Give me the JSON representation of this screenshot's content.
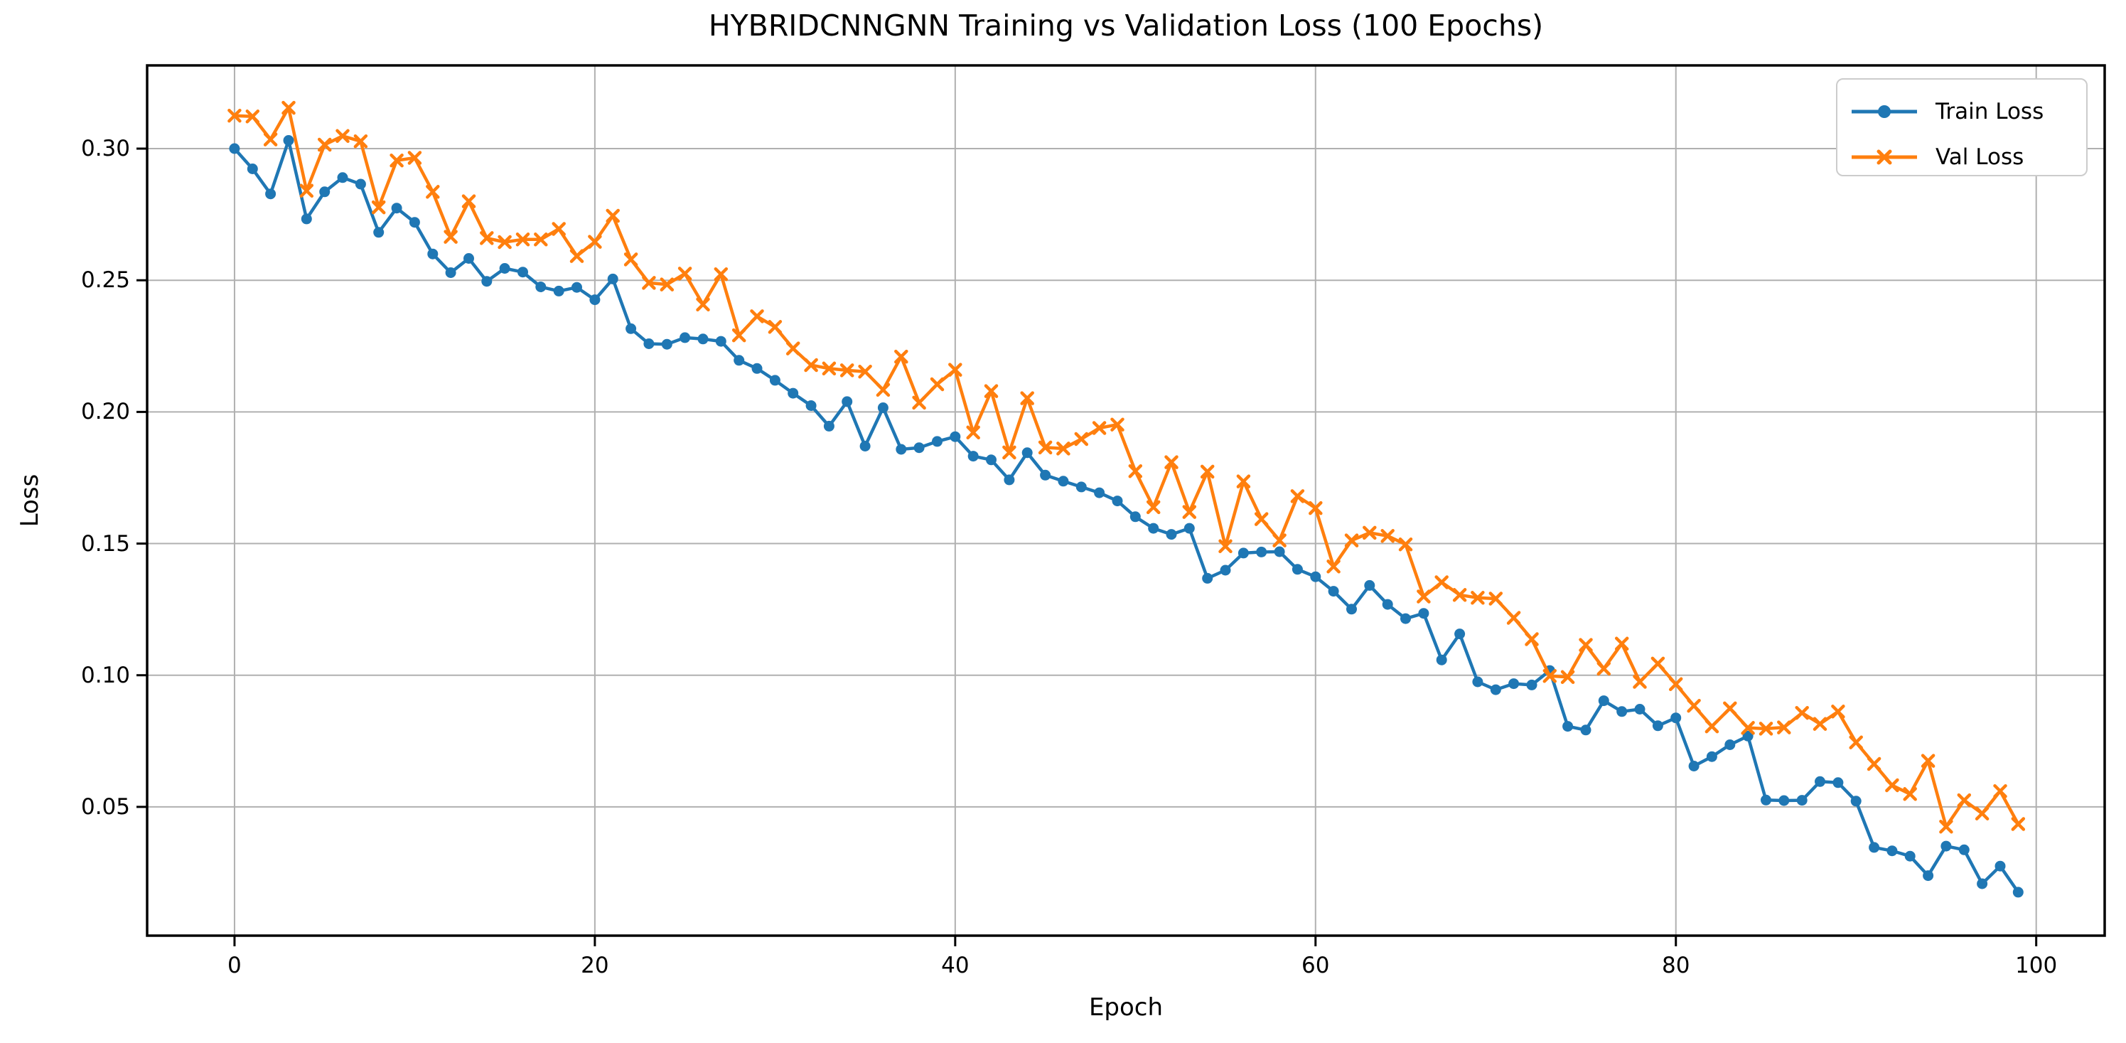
{
  "chart_data": {
    "type": "line",
    "title": "HYBRIDCNNGNN Training vs Validation Loss (100 Epochs)",
    "xlabel": "Epoch",
    "ylabel": "Loss",
    "x_ticks": [
      0,
      20,
      40,
      60,
      80,
      100
    ],
    "x_tick_labels": [
      "0",
      "20",
      "40",
      "60",
      "80",
      "100"
    ],
    "y_ticks": [
      0.05,
      0.1,
      0.15,
      0.2,
      0.25,
      0.3
    ],
    "y_tick_labels": [
      "0.05",
      "0.10",
      "0.15",
      "0.20",
      "0.25",
      "0.30"
    ],
    "xlim": [
      -4.85,
      103.8
    ],
    "ylim": [
      0.0011,
      0.3316
    ],
    "grid": true,
    "legend_position": "upper right",
    "background_color": "#ffffff",
    "grid_color": "#b0b0b0",
    "spine_color": "#000000",
    "x": "epochs 0..99 (index of each value)",
    "series": [
      {
        "name": "Train Loss",
        "color": "#1f77b4",
        "marker": "circle",
        "values": [
          0.3,
          0.2923,
          0.2828,
          0.3031,
          0.2733,
          0.2836,
          0.289,
          0.2865,
          0.2682,
          0.2774,
          0.272,
          0.26,
          0.2529,
          0.2583,
          0.2496,
          0.2545,
          0.2531,
          0.2475,
          0.2459,
          0.2473,
          0.2426,
          0.2505,
          0.2316,
          0.2259,
          0.2257,
          0.2282,
          0.2277,
          0.2268,
          0.2196,
          0.2165,
          0.212,
          0.2071,
          0.2024,
          0.1946,
          0.2039,
          0.187,
          0.2016,
          0.1858,
          0.1864,
          0.1888,
          0.1906,
          0.1832,
          0.1818,
          0.1742,
          0.1845,
          0.176,
          0.1737,
          0.1715,
          0.1693,
          0.1662,
          0.1602,
          0.1558,
          0.1535,
          0.1558,
          0.1368,
          0.1399,
          0.1464,
          0.1468,
          0.1469,
          0.1402,
          0.1374,
          0.1319,
          0.1251,
          0.1341,
          0.1269,
          0.1215,
          0.1235,
          0.1058,
          0.1157,
          0.0975,
          0.0945,
          0.0968,
          0.0963,
          0.1018,
          0.0806,
          0.0792,
          0.0903,
          0.0862,
          0.0871,
          0.0808,
          0.0838,
          0.0655,
          0.0691,
          0.0736,
          0.0769,
          0.0526,
          0.0524,
          0.0525,
          0.0596,
          0.0592,
          0.0522,
          0.0346,
          0.0333,
          0.0313,
          0.0239,
          0.0351,
          0.0337,
          0.0208,
          0.0275,
          0.0176
        ]
      },
      {
        "name": "Val Loss",
        "color": "#ff7f0e",
        "marker": "x",
        "values": [
          0.3125,
          0.3122,
          0.3035,
          0.3155,
          0.284,
          0.3015,
          0.3048,
          0.3028,
          0.2777,
          0.2955,
          0.2965,
          0.2836,
          0.2665,
          0.28,
          0.266,
          0.2645,
          0.2655,
          0.2655,
          0.2695,
          0.2592,
          0.2646,
          0.2745,
          0.2579,
          0.249,
          0.2484,
          0.2525,
          0.2408,
          0.2523,
          0.2291,
          0.2363,
          0.2323,
          0.2241,
          0.2178,
          0.2165,
          0.2158,
          0.2153,
          0.2084,
          0.221,
          0.2035,
          0.2105,
          0.216,
          0.1922,
          0.2079,
          0.1846,
          0.2052,
          0.1865,
          0.1861,
          0.1897,
          0.1939,
          0.1952,
          0.1775,
          0.1638,
          0.1809,
          0.162,
          0.1773,
          0.149,
          0.1736,
          0.1593,
          0.1512,
          0.168,
          0.1635,
          0.1413,
          0.1512,
          0.1541,
          0.1529,
          0.1497,
          0.1299,
          0.1353,
          0.1305,
          0.1294,
          0.1291,
          0.1218,
          0.1137,
          0.0997,
          0.0993,
          0.1115,
          0.1025,
          0.112,
          0.0975,
          0.1044,
          0.0966,
          0.0884,
          0.0806,
          0.0874,
          0.08,
          0.0797,
          0.0802,
          0.0857,
          0.0815,
          0.0862,
          0.0745,
          0.0663,
          0.0582,
          0.0549,
          0.0675,
          0.0425,
          0.0525,
          0.0475,
          0.056,
          0.0435
        ]
      }
    ]
  },
  "legend": {
    "items": [
      {
        "label": "Train Loss"
      },
      {
        "label": "Val Loss"
      }
    ]
  }
}
